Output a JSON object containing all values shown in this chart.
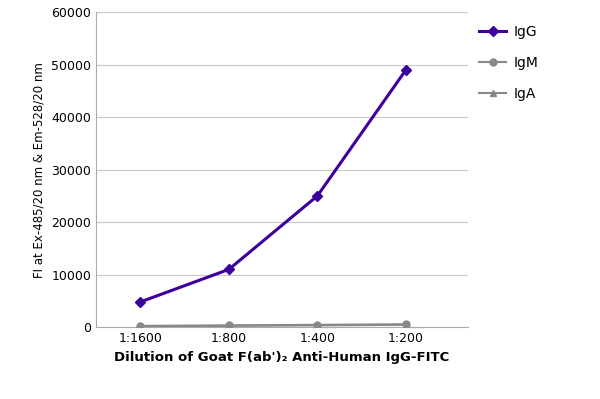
{
  "x_labels": [
    "1:1600",
    "1:800",
    "1:400",
    "1:200"
  ],
  "x_positions": [
    1,
    2,
    3,
    4
  ],
  "IgG": [
    4800,
    11000,
    25000,
    49000
  ],
  "IgM": [
    250,
    350,
    450,
    550
  ],
  "IgA": [
    150,
    250,
    350,
    450
  ],
  "IgG_color": "#3d009f",
  "IgM_color": "#888888",
  "IgA_color": "#888888",
  "ylabel": "FI at Ex-485/20 nm & Em-528/20 nm",
  "xlabel": "Dilution of Goat F(ab')₂ Anti-Human IgG-FITC",
  "ylim": [
    0,
    60000
  ],
  "yticks": [
    0,
    10000,
    20000,
    30000,
    40000,
    50000,
    60000
  ],
  "ytick_labels": [
    "0",
    "10000",
    "20000",
    "30000",
    "40000",
    "50000",
    "60000"
  ],
  "bg_color": "#ffffff",
  "grid_color": "#c8c8c8",
  "legend_labels": [
    "IgG",
    "IgM",
    "IgA"
  ]
}
